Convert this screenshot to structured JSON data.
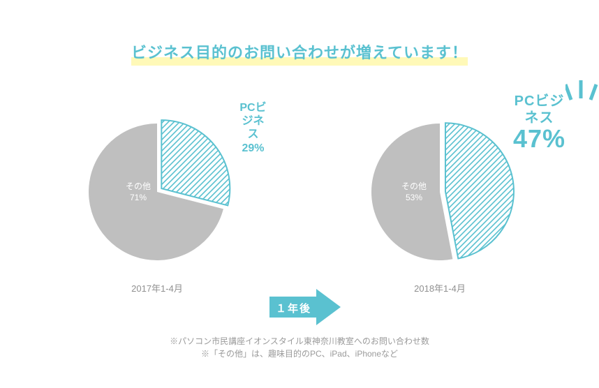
{
  "title": "ビジネス目的のお問い合わせが増えています！",
  "accent_color": "#5ac1d0",
  "highlight_color": "#fff9b8",
  "gray_fill": "#bfbfbf",
  "hatch_color": "#5ac1d0",
  "slice_bg": "#ffffff",
  "text_gray": "#909090",
  "white": "#ffffff",
  "chart_left": {
    "type": "pie",
    "radius": 98,
    "business_pct": 29,
    "other_pct": 71,
    "callout_label": "PCビジネス",
    "callout_pct": "29%",
    "center_label_1": "その他",
    "center_label_2": "71%",
    "period": "2017年1-4月",
    "separated": true
  },
  "arrow": {
    "label": "１年後",
    "fill": "#5ac1d0"
  },
  "chart_right": {
    "type": "pie",
    "radius": 98,
    "business_pct": 47,
    "other_pct": 53,
    "callout_label": "PCビジネス",
    "callout_pct": "47%",
    "center_label_1": "その他",
    "center_label_2": "53%",
    "period": "2018年1-4月",
    "separated": true
  },
  "footnote_1": "※パソコン市民講座イオンスタイル東神奈川教室へのお問い合わせ数",
  "footnote_2": "※「その他」は、趣味目的のPC、iPad、iPhoneなど"
}
